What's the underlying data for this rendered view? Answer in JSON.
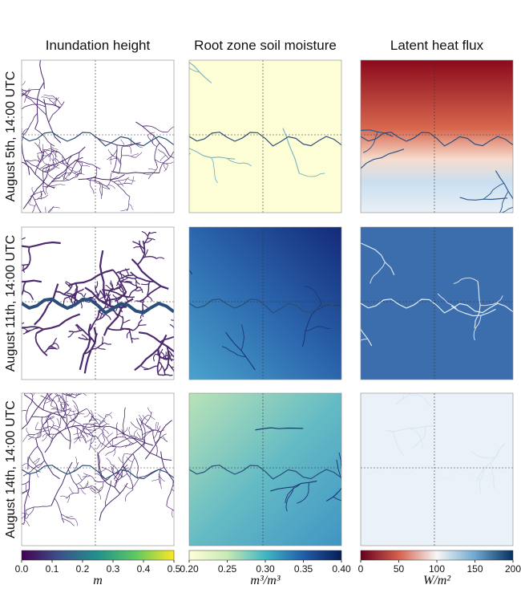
{
  "columns": [
    "Inundation height",
    "Root zone soil moisture",
    "Latent heat flux"
  ],
  "rows": [
    "August 5th, 14:00 UTC",
    "August 11th, 14:00 UTC",
    "August 14th, 14:00 UTC"
  ],
  "colorbars": [
    {
      "unit": "m",
      "range": [
        0,
        0.5
      ],
      "ticks": [
        {
          "value": 0,
          "label": "0.0"
        },
        {
          "value": 0.1,
          "label": "0.1"
        },
        {
          "value": 0.2,
          "label": "0.2"
        },
        {
          "value": 0.3,
          "label": "0.3"
        },
        {
          "value": 0.4,
          "label": "0.4"
        },
        {
          "value": 0.5,
          "label": "0.5"
        }
      ]
    },
    {
      "unit": "m³/m³",
      "range": [
        0.2,
        0.4
      ],
      "ticks": [
        {
          "value": 0.2,
          "label": "0.20"
        },
        {
          "value": 0.25,
          "label": "0.25"
        },
        {
          "value": 0.3,
          "label": "0.30"
        },
        {
          "value": 0.35,
          "label": "0.35"
        },
        {
          "value": 0.4,
          "label": "0.40"
        }
      ]
    },
    {
      "unit": "W/m²",
      "range": [
        0,
        200
      ],
      "ticks": [
        0,
        50,
        100,
        150,
        200
      ]
    }
  ]
}
